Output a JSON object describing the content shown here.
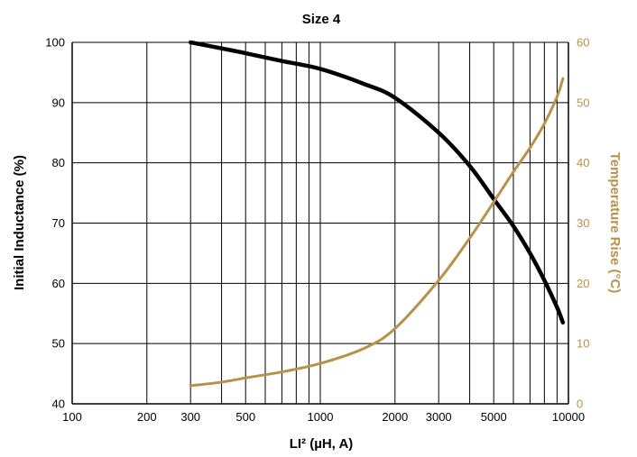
{
  "chart_data": {
    "type": "line",
    "title": "Size 4",
    "xlabel": "LI² (µH, A)",
    "ylabel": "Initial Inductance (%)",
    "y2label": "Temperature Rise (°C)",
    "x_scale": "log",
    "xlim": [
      100,
      10000
    ],
    "ylim": [
      40,
      100
    ],
    "y2lim": [
      0,
      60
    ],
    "grid": true,
    "x_ticks": [
      100,
      200,
      300,
      500,
      1000,
      2000,
      3000,
      5000,
      10000
    ],
    "x_tick_labels": [
      "100",
      "200",
      "300",
      "500",
      "1000",
      "2000",
      "3000",
      "5000",
      "10000"
    ],
    "y_ticks": [
      40,
      50,
      60,
      70,
      80,
      90,
      100
    ],
    "y_tick_labels": [
      "40",
      "50",
      "60",
      "70",
      "80",
      "90",
      "100"
    ],
    "y2_ticks": [
      0,
      10,
      20,
      30,
      40,
      50,
      60
    ],
    "y2_tick_labels": [
      "0",
      "10",
      "20",
      "30",
      "40",
      "50",
      "60"
    ],
    "colors": {
      "inductance": "#000000",
      "temperature": "#b8924a",
      "grid": "#000000"
    },
    "series": [
      {
        "axis": "left",
        "color": "#000000",
        "x": [
          300,
          400,
          500,
          700,
          1000,
          1500,
          2000,
          3000,
          4000,
          5000,
          6000,
          7000,
          8000,
          9000,
          9500
        ],
        "values": [
          100,
          99.0,
          98.2,
          96.9,
          95.6,
          93.1,
          90.8,
          85.0,
          79.5,
          74.0,
          69.5,
          65.0,
          60.5,
          56.0,
          53.5
        ]
      },
      {
        "axis": "right",
        "color": "#b8924a",
        "x": [
          300,
          400,
          500,
          700,
          1000,
          1500,
          2000,
          3000,
          4000,
          5000,
          6000,
          7000,
          8000,
          9000,
          9500
        ],
        "values": [
          3.0,
          3.6,
          4.3,
          5.3,
          6.7,
          9.2,
          12.5,
          20.5,
          27.5,
          33.5,
          38.5,
          42.5,
          46.5,
          51.0,
          54.0
        ]
      }
    ]
  }
}
